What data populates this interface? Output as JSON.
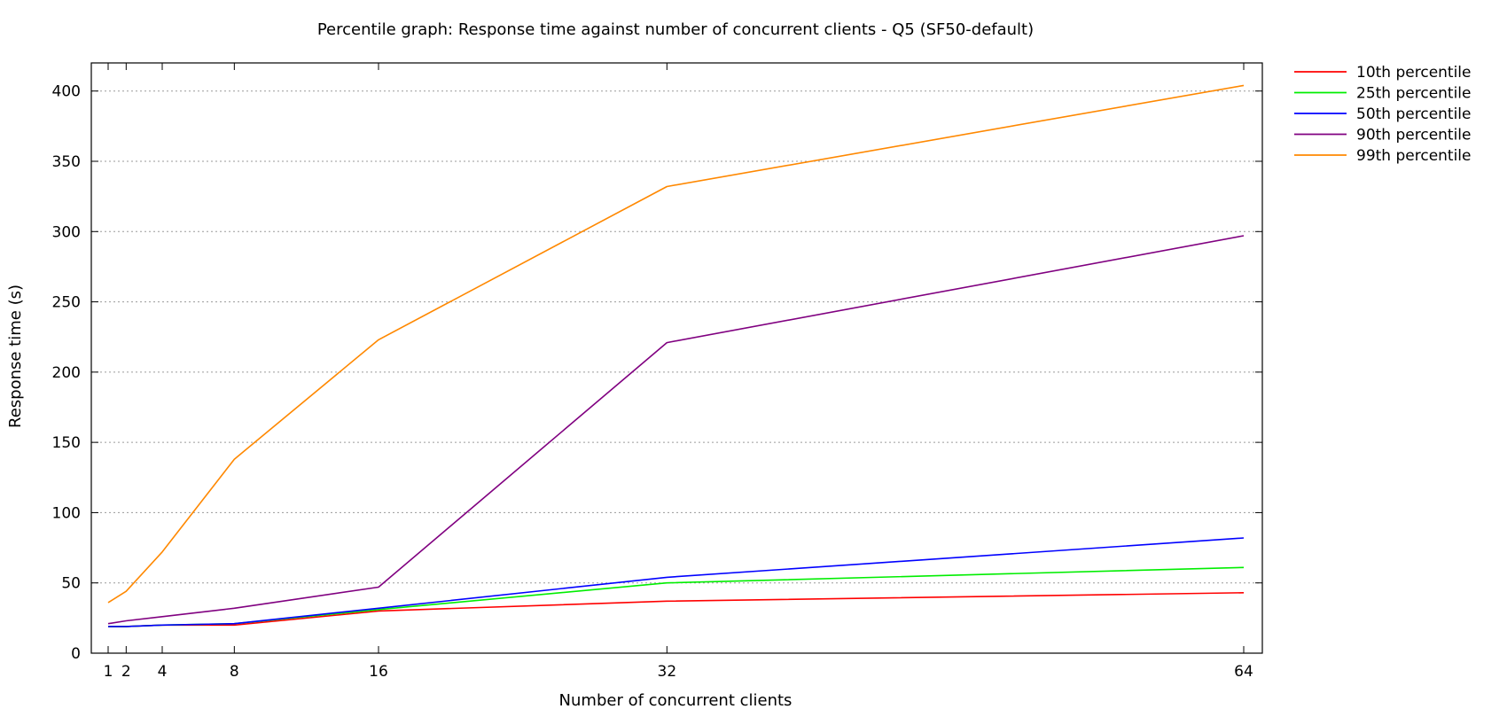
{
  "chart_data": {
    "type": "line",
    "title": "Percentile graph: Response time against number of concurrent clients - Q5 (SF50-default)",
    "xlabel": "Number of concurrent clients",
    "ylabel": "Response time (s)",
    "x": [
      1,
      2,
      4,
      8,
      16,
      32,
      64
    ],
    "x_ticks": [
      "1",
      "2",
      "4",
      "8",
      "16",
      "32",
      "64"
    ],
    "xlim": [
      1,
      64
    ],
    "ylim": [
      0,
      420
    ],
    "y_ticks": [
      "0",
      "50",
      "100",
      "150",
      "200",
      "250",
      "300",
      "350",
      "400"
    ],
    "grid": true,
    "legend_position": "outside-top-right",
    "series": [
      {
        "name": "10th percentile",
        "color": "#ff0000",
        "values": [
          19,
          19,
          20,
          20,
          30,
          37,
          43
        ]
      },
      {
        "name": "25th percentile",
        "color": "#00ee00",
        "values": [
          19,
          19,
          20,
          21,
          31,
          50,
          61
        ]
      },
      {
        "name": "50th percentile",
        "color": "#0000ff",
        "values": [
          19,
          19,
          20,
          21,
          32,
          54,
          82
        ]
      },
      {
        "name": "90th percentile",
        "color": "#800080",
        "values": [
          21,
          23,
          26,
          32,
          47,
          221,
          297
        ]
      },
      {
        "name": "99th percentile",
        "color": "#ff8800",
        "values": [
          36,
          44,
          72,
          138,
          223,
          332,
          404
        ]
      }
    ]
  }
}
